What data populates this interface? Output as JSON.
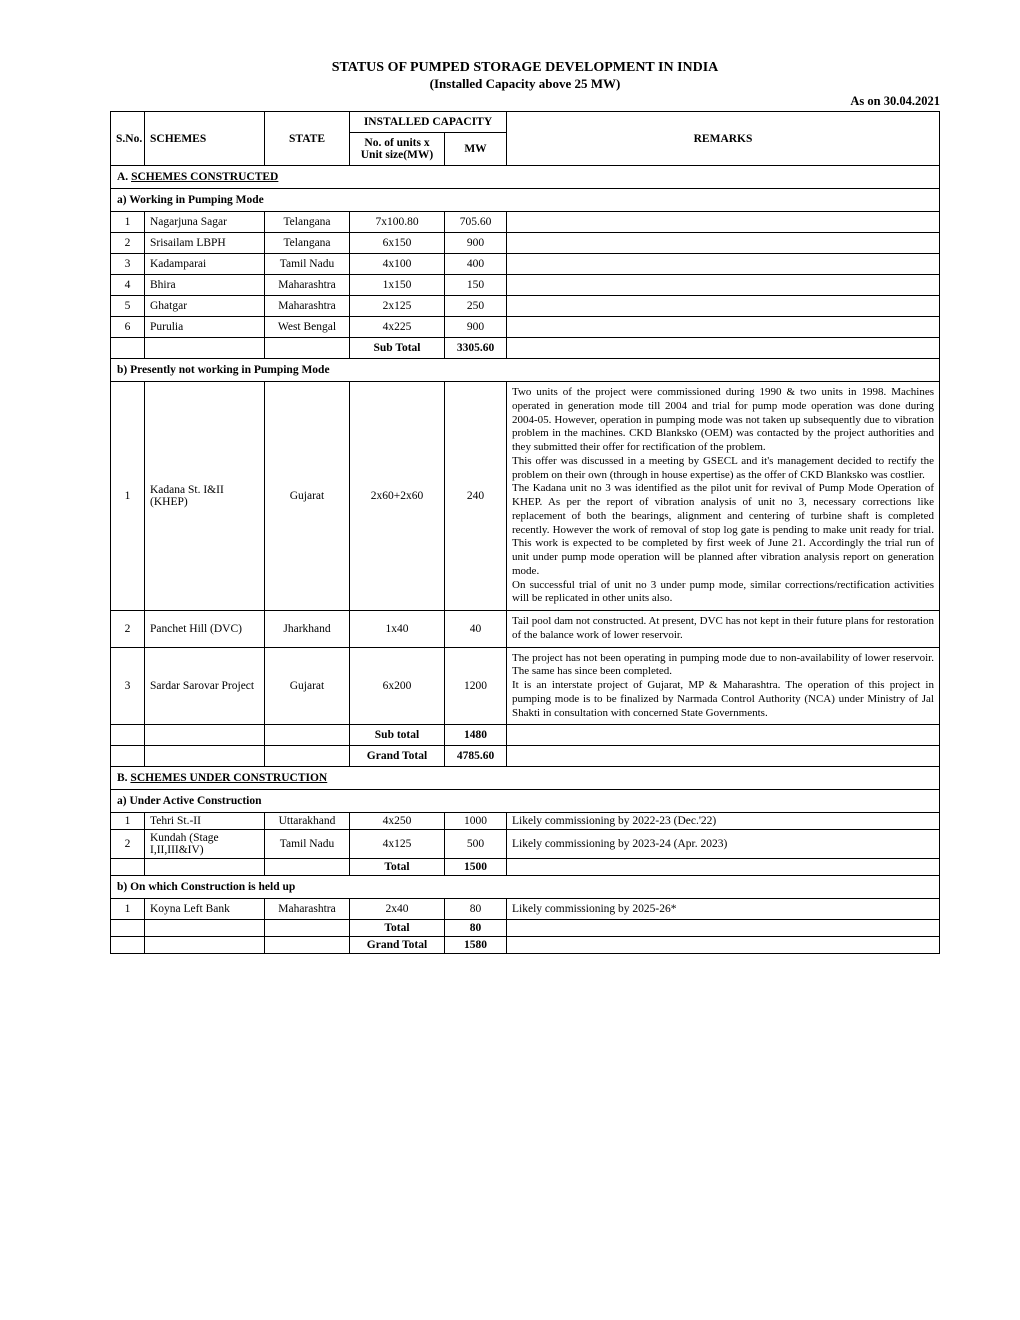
{
  "title_line1": "STATUS OF PUMPED STORAGE DEVELOPMENT IN INDIA",
  "title_line2": "(Installed Capacity above 25 MW)",
  "as_of": "As on 30.04.2021",
  "columns": {
    "sno": "S.No.",
    "schemes": "SCHEMES",
    "state": "STATE",
    "installed_capacity_group": "INSTALLED  CAPACITY",
    "units": "No. of units x Unit size(MW)",
    "mw": "MW",
    "remarks": "REMARKS"
  },
  "sectionA": {
    "heading_prefix": "A.  ",
    "heading": "SCHEMES CONSTRUCTED",
    "sub_a": {
      "heading": "a) Working in Pumping Mode",
      "rows": [
        {
          "sno": "1",
          "scheme": "Nagarjuna Sagar",
          "state": "Telangana",
          "units": "7x100.80",
          "mw": "705.60",
          "remarks": ""
        },
        {
          "sno": "2",
          "scheme": "Srisailam LBPH",
          "state": "Telangana",
          "units": "6x150",
          "mw": "900",
          "remarks": ""
        },
        {
          "sno": "3",
          "scheme": "Kadamparai",
          "state": "Tamil Nadu",
          "units": "4x100",
          "mw": "400",
          "remarks": ""
        },
        {
          "sno": "4",
          "scheme": "Bhira",
          "state": "Maharashtra",
          "units": "1x150",
          "mw": "150",
          "remarks": ""
        },
        {
          "sno": "5",
          "scheme": "Ghatgar",
          "state": "Maharashtra",
          "units": "2x125",
          "mw": "250",
          "remarks": ""
        },
        {
          "sno": "6",
          "scheme": "Purulia",
          "state": "West Bengal",
          "units": "4x225",
          "mw": "900",
          "remarks": ""
        }
      ],
      "subtotal_label": "Sub Total",
      "subtotal_mw": "3305.60"
    },
    "sub_b": {
      "heading": "b) Presently not working in Pumping Mode",
      "rows": [
        {
          "sno": "1",
          "scheme": "Kadana St. I&II (KHEP)",
          "state": "Gujarat",
          "units": "2x60+2x60",
          "mw": "240",
          "remarks": "Two units of the project were commissioned during 1990 & two units in 1998. Machines operated in generation mode till 2004 and trial for pump mode operation was done during 2004-05. However, operation in pumping mode was not taken up subsequently due to vibration problem in the machines. CKD Blanksko (OEM) was contacted by the project authorities and they submitted their offer for rectification of the problem.\nThis offer was discussed in a meeting by GSECL and it's management decided to rectify the problem on their own (through in house expertise) as the offer of CKD Blanksko was costlier.\nThe Kadana unit no 3 was identified as the pilot unit for revival of Pump Mode Operation of KHEP. As per the report of vibration analysis of unit no 3, necessary corrections like replacement of both the bearings, alignment and centering of turbine shaft is completed recently. However the work of removal of stop log gate is pending to make unit ready for trial. This work is expected to be completed by first week of June 21. Accordingly the trial run of unit under pump mode operation will be planned after vibration analysis report on generation mode.\nOn successful trial of unit no 3 under pump mode, similar corrections/rectification activities will be replicated in other units also."
        },
        {
          "sno": "2",
          "scheme": "Panchet Hill (DVC)",
          "state": "Jharkhand",
          "units": "1x40",
          "mw": "40",
          "remarks": "Tail pool dam not constructed. At present, DVC has not kept in their future plans for restoration of the balance work of lower reservoir."
        },
        {
          "sno": "3",
          "scheme": "Sardar Sarovar Project",
          "state": "Gujarat",
          "units": "6x200",
          "mw": "1200",
          "remarks": "The project has not been operating in pumping mode due to non-availability of lower reservoir. The same has since been completed.\nIt is an interstate project of Gujarat, MP & Maharashtra. The operation of this project in pumping mode is to be finalized by Narmada Control Authority (NCA) under Ministry of Jal Shakti in consultation with concerned State Governments."
        }
      ],
      "subtotal_label": "Sub total",
      "subtotal_mw": "1480",
      "grand_total_label": "Grand Total",
      "grand_total_mw": "4785.60"
    }
  },
  "sectionB": {
    "heading_prefix": "B.  ",
    "heading": "SCHEMES UNDER CONSTRUCTION",
    "sub_a": {
      "heading": "a) Under Active Construction",
      "rows": [
        {
          "sno": "1",
          "scheme": "Tehri  St.-II",
          "state": "Uttarakhand",
          "units": "4x250",
          "mw": "1000",
          "remarks": "Likely commissioning by 2022-23 (Dec.'22)"
        },
        {
          "sno": "2",
          "scheme": "Kundah (Stage I,II,III&IV)",
          "state": "Tamil Nadu",
          "units": "4x125",
          "mw": "500",
          "remarks": "Likely commissioning by 2023-24 (Apr. 2023)"
        }
      ],
      "total_label": "Total",
      "total_mw": "1500"
    },
    "sub_b": {
      "heading": "b) On which Construction is held up",
      "rows": [
        {
          "sno": "1",
          "scheme": "Koyna Left Bank",
          "state": "Maharashtra",
          "units": "2x40",
          "mw": "80",
          "remarks": "Likely commissioning by 2025-26*"
        }
      ],
      "total_label": "Total",
      "total_mw": "80",
      "grand_total_label": "Grand Total",
      "grand_total_mw": "1580"
    }
  }
}
